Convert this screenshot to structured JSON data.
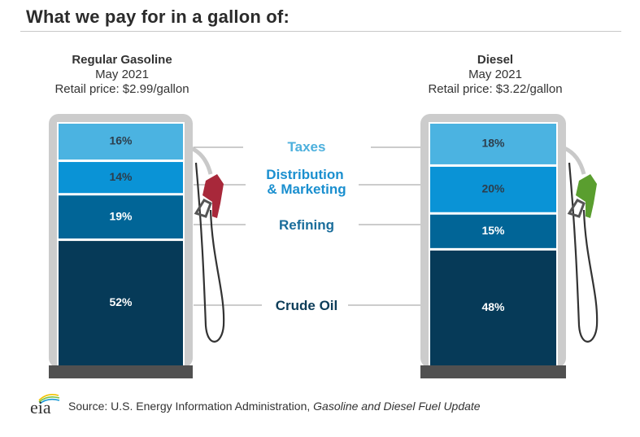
{
  "title": "What we pay for in a gallon of:",
  "chart_data": {
    "type": "bar",
    "subtype": "stacked-100",
    "title": "What we pay for in a gallon of:",
    "categories": [
      "Crude Oil",
      "Refining",
      "Distribution & Marketing",
      "Taxes"
    ],
    "legend_position": "center",
    "series_colors": {
      "Crude Oil": "#063a58",
      "Refining": "#016597",
      "Distribution & Marketing": "#0a93d6",
      "Taxes": "#4bb3e1"
    },
    "label_colors": {
      "Crude Oil": "#0d3d59",
      "Refining": "#1a6d9b",
      "Distribution & Marketing": "#1a8fcf",
      "Taxes": "#4db0dd"
    },
    "bars": [
      {
        "name": "Regular Gasoline",
        "period": "May 2021",
        "price_label": "Retail price: $2.99/gallon",
        "retail_price": 2.99,
        "nozzle_color": "#a8283a",
        "values": {
          "Crude Oil": 52,
          "Refining": 19,
          "Distribution & Marketing": 14,
          "Taxes": 16
        }
      },
      {
        "name": "Diesel",
        "period": "May 2021",
        "price_label": "Retail price: $3.22/gallon",
        "retail_price": 3.22,
        "nozzle_color": "#5a9e2f",
        "values": {
          "Crude Oil": 48,
          "Refining": 15,
          "Distribution & Marketing": 20,
          "Taxes": 18
        }
      }
    ],
    "unit": "%"
  },
  "legend": {
    "taxes": "Taxes",
    "distribution_line1": "Distribution",
    "distribution_line2": "& Marketing",
    "refining": "Refining",
    "crude": "Crude Oil"
  },
  "footer": {
    "logo_text": "eia",
    "source_prefix": "Source: U.S. Energy Information Administration, ",
    "source_title": "Gasoline and Diesel Fuel Update"
  }
}
